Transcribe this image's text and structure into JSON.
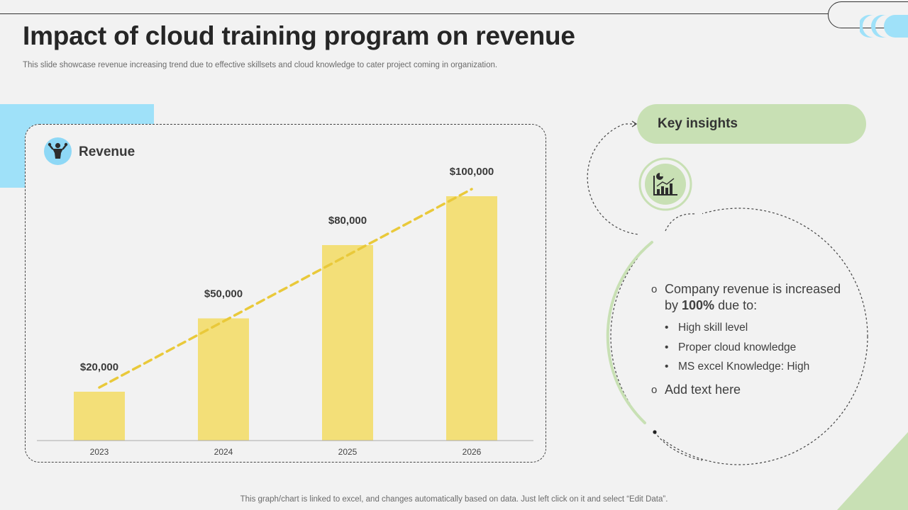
{
  "header": {
    "title": "Impact of cloud training program on revenue",
    "subtitle": "This slide showcase revenue increasing trend due to effective  skillsets and cloud knowledge to cater project coming in organization."
  },
  "chart_panel": {
    "label": "Revenue",
    "icon": "trophy-person-icon"
  },
  "chart_data": {
    "type": "bar",
    "title": "Revenue",
    "categories": [
      "2023",
      "2024",
      "2025",
      "2026"
    ],
    "values": [
      20000,
      50000,
      80000,
      100000
    ],
    "data_labels": [
      "$20,000",
      "$50,000",
      "$80,000",
      "$100,000"
    ],
    "trendline": true,
    "xlabel": "",
    "ylabel": "",
    "ylim": [
      0,
      100000
    ],
    "grid": false,
    "colors": {
      "bar": "#f3df78",
      "trend": "#e9c93a",
      "axis": "#aaaaaa"
    }
  },
  "insights": {
    "title": "Key insights",
    "icon": "chart-analytics-icon",
    "items": [
      {
        "text_before": "Company revenue is increased by ",
        "highlight": "100%",
        "text_after": " due to:",
        "sub": [
          "High skill level",
          "Proper cloud knowledge",
          "MS excel Knowledge: High"
        ]
      },
      {
        "text_before": "Add text here"
      }
    ]
  },
  "footer": {
    "note": "This graph/chart is linked to excel,  and changes automatically based on data. Just left click on it and select “Edit Data”."
  },
  "colors": {
    "accent_blue": "#9fe1f9",
    "accent_green": "#c8e0b4",
    "bar_yellow": "#f3df78"
  }
}
